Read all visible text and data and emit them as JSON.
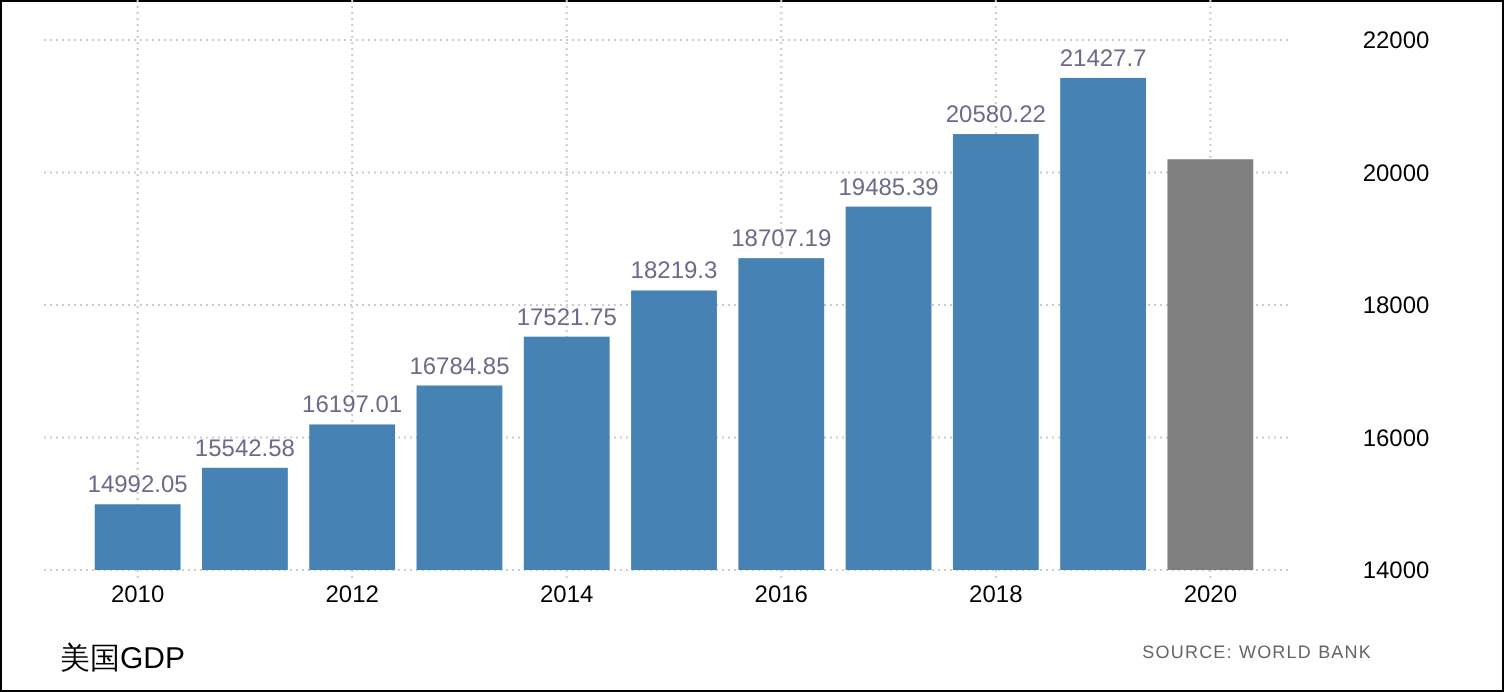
{
  "chart_data": {
    "type": "bar",
    "title": "美国GDP",
    "annotations": [
      "SOURCE: WORLD BANK"
    ],
    "categories": [
      "2010",
      null,
      "2012",
      null,
      "2014",
      null,
      "2016",
      null,
      "2018",
      null,
      "2020"
    ],
    "values": [
      14992.05,
      15542.58,
      16197.01,
      16784.85,
      17521.75,
      18219.3,
      18707.19,
      19485.39,
      20580.22,
      21427.7,
      20200
    ],
    "colors": [
      "#4682b4",
      "#4682b4",
      "#4682b4",
      "#4682b4",
      "#4682b4",
      "#4682b4",
      "#4682b4",
      "#4682b4",
      "#4682b4",
      "#4682b4",
      "#808080"
    ],
    "value_labels": [
      "14992.05",
      "15542.58",
      "16197.01",
      "16784.85",
      "17521.75",
      "18219.3",
      "18707.19",
      "19485.39",
      "20580.22",
      "21427.7",
      null
    ],
    "ylim": [
      14000,
      22000
    ],
    "yticks": [
      14000,
      16000,
      18000,
      20000,
      22000
    ],
    "grid": true
  }
}
